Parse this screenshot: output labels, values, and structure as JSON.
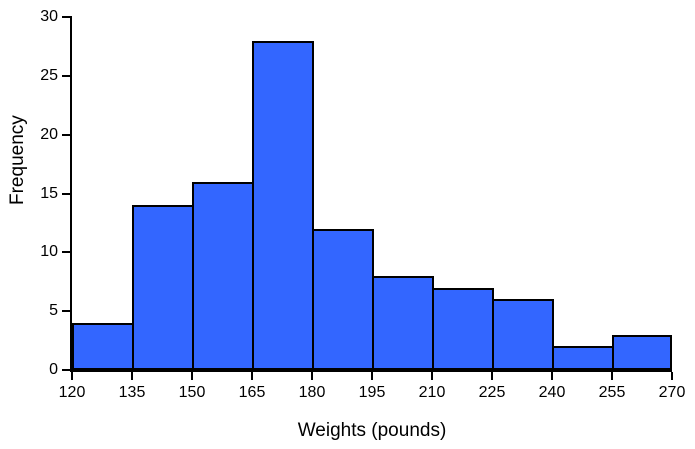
{
  "chart_data": {
    "type": "bar",
    "subtype": "histogram",
    "title": "",
    "xlabel": "Weights (pounds)",
    "ylabel": "Frequency",
    "bin_edges": [
      120,
      135,
      150,
      165,
      180,
      195,
      210,
      225,
      240,
      255,
      270
    ],
    "categories": [
      "120-135",
      "135-150",
      "150-165",
      "165-180",
      "180-195",
      "195-210",
      "210-225",
      "225-240",
      "240-255",
      "255-270"
    ],
    "values": [
      4,
      14,
      16,
      28,
      12,
      8,
      7,
      6,
      2,
      3
    ],
    "x_tick_labels": [
      "120",
      "135",
      "150",
      "165",
      "180",
      "195",
      "210",
      "225",
      "240",
      "255",
      "270"
    ],
    "y_tick_labels": [
      "0",
      "5",
      "10",
      "15",
      "20",
      "25",
      "30"
    ],
    "y_tick_values": [
      0,
      5,
      10,
      15,
      20,
      25,
      30
    ],
    "xlim": [
      120,
      270
    ],
    "ylim": [
      0,
      30
    ],
    "grid": false,
    "legend_position": "none",
    "bar_fill_color": "#3366ff",
    "bar_border_color": "#000000",
    "axis_color": "#000000",
    "background_color": "#ffffff"
  }
}
